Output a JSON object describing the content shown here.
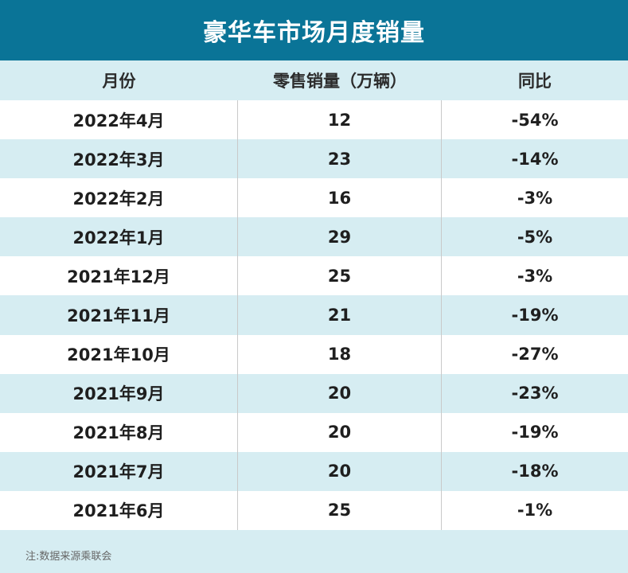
{
  "title": "豪华车市场月度销量",
  "headers": {
    "month": "月份",
    "sales": "零售销量（万辆）",
    "yoy": "同比"
  },
  "footnote": "注:数据来源乘联会",
  "chart_data": {
    "type": "table",
    "title": "豪华车市场月度销量",
    "columns": [
      "月份",
      "零售销量（万辆）",
      "同比"
    ],
    "rows": [
      {
        "month": "2022年4月",
        "sales": "12",
        "yoy": "-54%"
      },
      {
        "month": "2022年3月",
        "sales": "23",
        "yoy": "-14%"
      },
      {
        "month": "2022年2月",
        "sales": "16",
        "yoy": "-3%"
      },
      {
        "month": "2022年1月",
        "sales": "29",
        "yoy": "-5%"
      },
      {
        "month": "2021年12月",
        "sales": "25",
        "yoy": "-3%"
      },
      {
        "month": "2021年11月",
        "sales": "21",
        "yoy": "-19%"
      },
      {
        "month": "2021年10月",
        "sales": "18",
        "yoy": "-27%"
      },
      {
        "month": "2021年9月",
        "sales": "20",
        "yoy": "-23%"
      },
      {
        "month": "2021年8月",
        "sales": "20",
        "yoy": "-19%"
      },
      {
        "month": "2021年7月",
        "sales": "20",
        "yoy": "-18%"
      },
      {
        "month": "2021年6月",
        "sales": "25",
        "yoy": "-1%"
      }
    ]
  }
}
